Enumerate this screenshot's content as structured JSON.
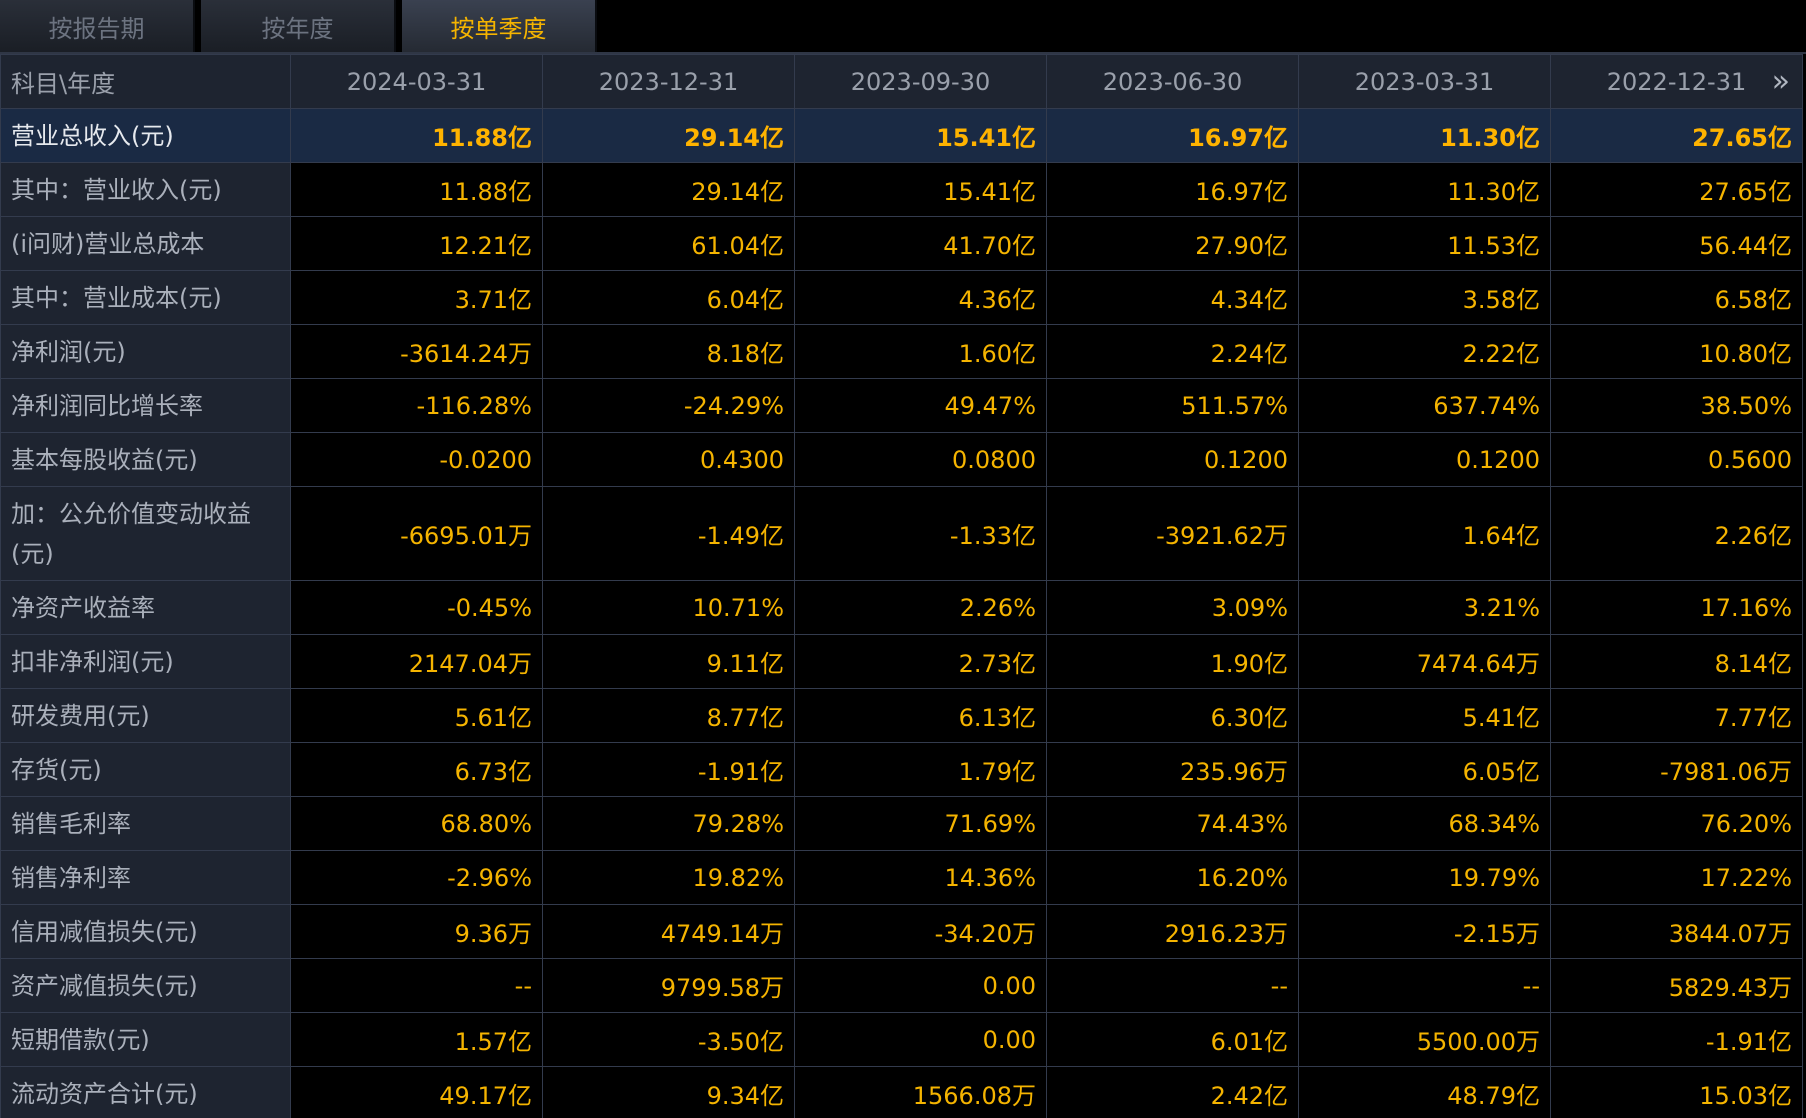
{
  "tabs": [
    {
      "label": "按报告期",
      "active": false
    },
    {
      "label": "按年度",
      "active": false
    },
    {
      "label": "按单季度",
      "active": true
    }
  ],
  "table": {
    "corner_label": "科目\\年度",
    "columns": [
      "2024-03-31",
      "2023-12-31",
      "2023-09-30",
      "2023-06-30",
      "2023-03-31",
      "2022-12-31"
    ],
    "next_icon": "»",
    "rows": [
      {
        "label": "营业总收入(元)",
        "values": [
          "11.88亿",
          "29.14亿",
          "15.41亿",
          "16.97亿",
          "11.30亿",
          "27.65亿"
        ]
      },
      {
        "label": "其中：营业收入(元)",
        "values": [
          "11.88亿",
          "29.14亿",
          "15.41亿",
          "16.97亿",
          "11.30亿",
          "27.65亿"
        ]
      },
      {
        "label": "(i问财)营业总成本",
        "values": [
          "12.21亿",
          "61.04亿",
          "41.70亿",
          "27.90亿",
          "11.53亿",
          "56.44亿"
        ]
      },
      {
        "label": "其中：营业成本(元)",
        "values": [
          "3.71亿",
          "6.04亿",
          "4.36亿",
          "4.34亿",
          "3.58亿",
          "6.58亿"
        ]
      },
      {
        "label": "净利润(元)",
        "values": [
          "-3614.24万",
          "8.18亿",
          "1.60亿",
          "2.24亿",
          "2.22亿",
          "10.80亿"
        ]
      },
      {
        "label": "净利润同比增长率",
        "values": [
          "-116.28%",
          "-24.29%",
          "49.47%",
          "511.57%",
          "637.74%",
          "38.50%"
        ]
      },
      {
        "label": "基本每股收益(元)",
        "values": [
          "-0.0200",
          "0.4300",
          "0.0800",
          "0.1200",
          "0.1200",
          "0.5600"
        ]
      },
      {
        "label": "加：公允价值变动收益(元)",
        "values": [
          "-6695.01万",
          "-1.49亿",
          "-1.33亿",
          "-3921.62万",
          "1.64亿",
          "2.26亿"
        ]
      },
      {
        "label": "净资产收益率",
        "values": [
          "-0.45%",
          "10.71%",
          "2.26%",
          "3.09%",
          "3.21%",
          "17.16%"
        ]
      },
      {
        "label": "扣非净利润(元)",
        "values": [
          "2147.04万",
          "9.11亿",
          "2.73亿",
          "1.90亿",
          "7474.64万",
          "8.14亿"
        ]
      },
      {
        "label": "研发费用(元)",
        "values": [
          "5.61亿",
          "8.77亿",
          "6.13亿",
          "6.30亿",
          "5.41亿",
          "7.77亿"
        ]
      },
      {
        "label": "存货(元)",
        "values": [
          "6.73亿",
          "-1.91亿",
          "1.79亿",
          "235.96万",
          "6.05亿",
          "-7981.06万"
        ]
      },
      {
        "label": "销售毛利率",
        "values": [
          "68.80%",
          "79.28%",
          "71.69%",
          "74.43%",
          "68.34%",
          "76.20%"
        ]
      },
      {
        "label": "销售净利率",
        "values": [
          "-2.96%",
          "19.82%",
          "14.36%",
          "16.20%",
          "19.79%",
          "17.22%"
        ]
      },
      {
        "label": "信用减值损失(元)",
        "values": [
          "9.36万",
          "4749.14万",
          "-34.20万",
          "2916.23万",
          "-2.15万",
          "3844.07万"
        ]
      },
      {
        "label": "资产减值损失(元)",
        "values": [
          "--",
          "9799.58万",
          "0.00",
          "--",
          "--",
          "5829.43万"
        ]
      },
      {
        "label": "短期借款(元)",
        "values": [
          "1.57亿",
          "-3.50亿",
          "0.00",
          "6.01亿",
          "5500.00万",
          "-1.91亿"
        ]
      },
      {
        "label": "流动资产合计(元)",
        "values": [
          "49.17亿",
          "9.34亿",
          "1566.08万",
          "2.42亿",
          "48.79亿",
          "15.03亿"
        ]
      }
    ]
  },
  "colors": {
    "value": "#f5b400",
    "label_bg": "#1e2430",
    "highlight_bg": "#1a2a44",
    "border": "#333b4d"
  }
}
